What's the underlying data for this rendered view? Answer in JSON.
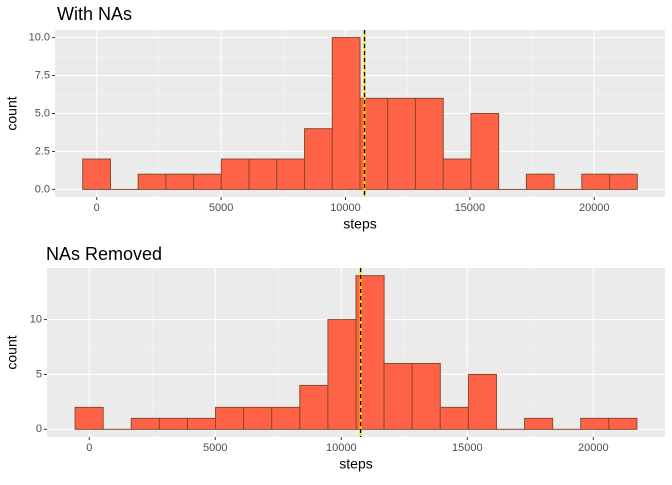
{
  "chart_data": [
    {
      "type": "histogram",
      "title": "With NAs",
      "x_label": "steps",
      "y_label": "count",
      "bins": [
        -563,
        552,
        1666,
        2781,
        3896,
        5010,
        6125,
        7240,
        8354,
        9469,
        10584,
        11698,
        12813,
        13928,
        15042,
        16157,
        17272,
        18386,
        19501,
        20616,
        21730
      ],
      "counts": [
        2,
        0,
        1,
        1,
        1,
        2,
        2,
        2,
        4,
        10,
        6,
        6,
        6,
        2,
        5,
        0,
        1,
        0,
        1,
        1
      ],
      "color": "#ff6347",
      "edge_color": "#8b4a2b",
      "mean": 10766,
      "median": 10765,
      "mean_color": "#ffd700",
      "median_color": "#000000",
      "xlim": [
        -1677,
        22844
      ],
      "ylim": [
        -0.5,
        10.5
      ],
      "xticks": [
        0,
        5000,
        10000,
        15000,
        20000
      ],
      "yticks": [
        {
          "value": 0,
          "label": "0.0"
        },
        {
          "value": 2.5,
          "label": "2.5"
        },
        {
          "value": 5,
          "label": "5.0"
        },
        {
          "value": 7.5,
          "label": "7.5"
        },
        {
          "value": 10,
          "label": "10.0"
        }
      ],
      "grid": true
    },
    {
      "type": "histogram",
      "title": "NAs Removed",
      "x_label": "steps",
      "y_label": "count",
      "bins": [
        -563,
        552,
        1666,
        2781,
        3896,
        5010,
        6125,
        7240,
        8354,
        9469,
        10584,
        11698,
        12813,
        13928,
        15042,
        16157,
        17272,
        18386,
        19501,
        20616,
        21730
      ],
      "counts": [
        2,
        0,
        1,
        1,
        1,
        2,
        2,
        2,
        4,
        10,
        14,
        6,
        6,
        2,
        5,
        0,
        1,
        0,
        1,
        1
      ],
      "color": "#ff6347",
      "edge_color": "#8b4a2b",
      "mean": 10766,
      "median": 10766,
      "mean_color": "#ffd700",
      "median_color": "#000000",
      "xlim": [
        -1677,
        22844
      ],
      "ylim": [
        -0.7,
        14.7
      ],
      "xticks": [
        0,
        5000,
        10000,
        15000,
        20000
      ],
      "yticks": [
        0,
        5,
        10
      ],
      "grid": true
    }
  ]
}
